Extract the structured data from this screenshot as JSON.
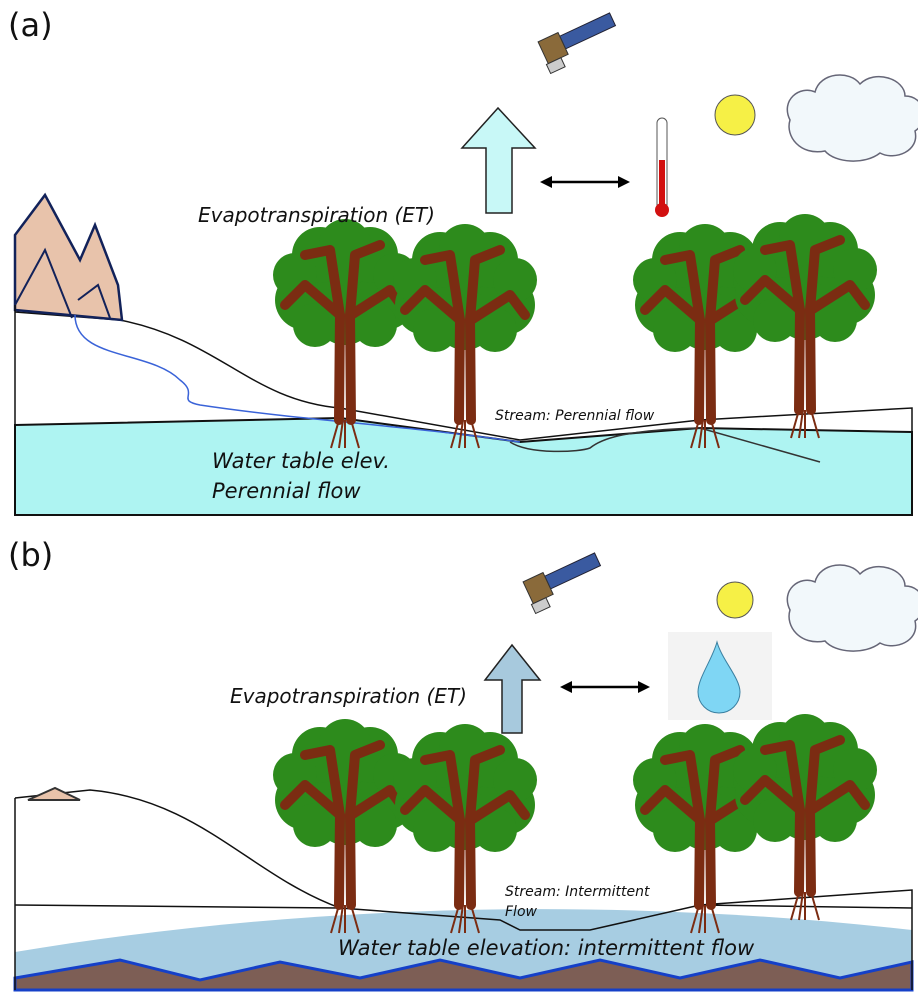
{
  "panels": [
    {
      "label": "(a)",
      "et_label": "Evapotranspiration (ET)",
      "stream_label": [
        "Stream: Perennial flow"
      ],
      "water_label": [
        "Water table elev.",
        "Perennial flow"
      ]
    },
    {
      "label": "(b)",
      "et_label": "Evapotranspiration (ET)",
      "stream_label": [
        "Stream: Intermittent",
        "Flow"
      ],
      "water_label": [
        "Water table elevation: intermittent flow"
      ]
    }
  ]
}
